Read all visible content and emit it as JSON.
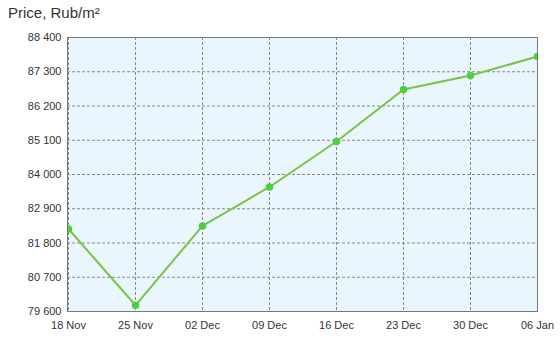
{
  "chart_data": {
    "type": "line",
    "y_label": "Price, Rub/m²",
    "categories": [
      "18 Nov",
      "25 Nov",
      "02 Dec",
      "09 Dec",
      "16 Dec",
      "23 Dec",
      "30 Dec",
      "06 Jan"
    ],
    "values": [
      82250,
      79800,
      82350,
      83600,
      85060,
      86730,
      87180,
      87790
    ],
    "color": "#7cc242",
    "marker": "circle",
    "ylim": [
      79600,
      88400
    ],
    "yticks": [
      {
        "value": 79600,
        "label": "79 600"
      },
      {
        "value": 80700,
        "label": "80 700"
      },
      {
        "value": 81800,
        "label": "81 800"
      },
      {
        "value": 82900,
        "label": "82 900"
      },
      {
        "value": 84000,
        "label": "84 000"
      },
      {
        "value": 85100,
        "label": "85 100"
      },
      {
        "value": 86200,
        "label": "86 200"
      },
      {
        "value": 87300,
        "label": "87 300"
      },
      {
        "value": 88400,
        "label": "88 400"
      }
    ],
    "grid": true
  }
}
